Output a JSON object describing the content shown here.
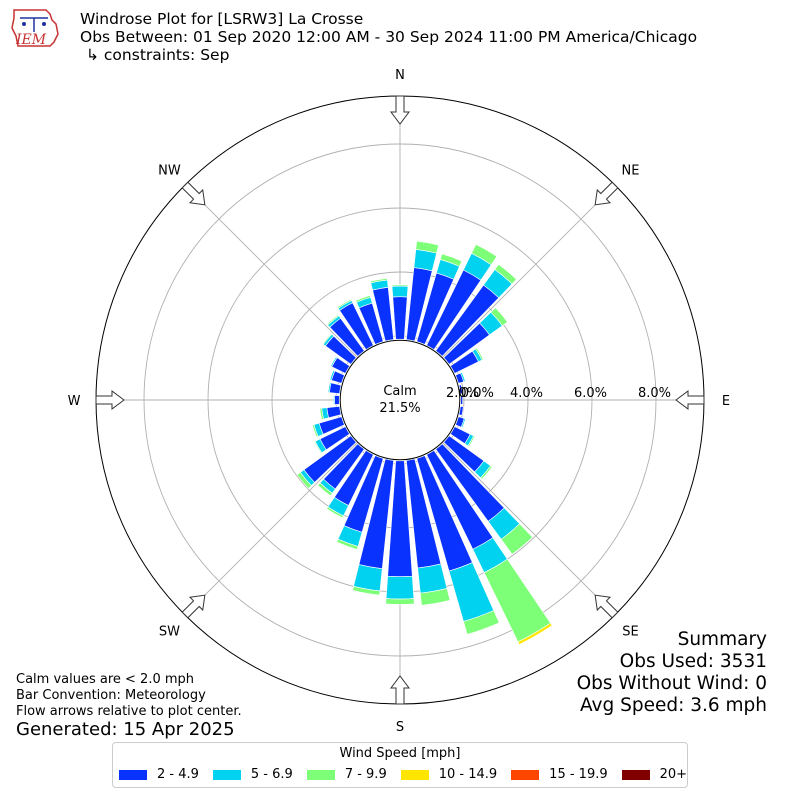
{
  "header": {
    "logo_text": "IEM",
    "title": "Windrose Plot for [LSRW3] La Crosse",
    "obs_between": "Obs Between: 01 Sep 2020 12:00 AM - 30 Sep 2024 11:00 PM America/Chicago",
    "constraints": "↳ constraints: Sep"
  },
  "footer": {
    "calm_note": "Calm values are < 2.0 mph",
    "bar_convention": "Bar Convention: Meteorology",
    "flow_note": "Flow arrows relative to plot center.",
    "generated": "Generated: 15 Apr 2025"
  },
  "summary": {
    "title": "Summary",
    "obs_used": "Obs Used: 3531",
    "obs_without_wind": "Obs Without Wind: 0",
    "avg_speed": "Avg Speed: 3.6 mph"
  },
  "legend": {
    "title": "Wind Speed [mph]",
    "items": [
      {
        "label": "2 - 4.9",
        "color": "#0a32ff"
      },
      {
        "label": "5 - 6.9",
        "color": "#00d2f0"
      },
      {
        "label": "7 - 9.9",
        "color": "#7dff78"
      },
      {
        "label": "10 - 14.9",
        "color": "#ffe600"
      },
      {
        "label": "15 - 19.9",
        "color": "#ff4600"
      },
      {
        "label": "20+",
        "color": "#800000"
      }
    ]
  },
  "chart_data": {
    "type": "windrose",
    "calm_label": "Calm",
    "calm_value": "21.5%",
    "radial_ticks": [
      "0.0%",
      "2.0%",
      "4.0%",
      "6.0%",
      "8.0%"
    ],
    "radial_tick_values": [
      0,
      2,
      4,
      6,
      8
    ],
    "rmax": 9.5,
    "calm_radius_value": 1.9,
    "directions": [
      "N",
      "NE",
      "E",
      "SE",
      "S",
      "SW",
      "W",
      "NW"
    ],
    "direction_angles": [
      0,
      45,
      90,
      135,
      180,
      225,
      270,
      315
    ],
    "speed_bins": [
      "2 - 4.9",
      "5 - 6.9",
      "7 - 9.9",
      "10 - 14.9",
      "15 - 19.9",
      "20+"
    ],
    "bar_colors": [
      "#0a32ff",
      "#00d2f0",
      "#7dff78",
      "#ffe600",
      "#ff4600",
      "#800000"
    ],
    "sector_width_deg": 10,
    "sectors": [
      {
        "dir": 0,
        "values": [
          1.33,
          0.33,
          0.04,
          0,
          0,
          0
        ]
      },
      {
        "dir": 10,
        "values": [
          2.26,
          0.57,
          0.26,
          0,
          0,
          0
        ]
      },
      {
        "dir": 20,
        "values": [
          2.23,
          0.44,
          0.18,
          0,
          0,
          0
        ]
      },
      {
        "dir": 30,
        "values": [
          2.62,
          0.58,
          0.31,
          0,
          0,
          0
        ]
      },
      {
        "dir": 40,
        "values": [
          2.54,
          0.6,
          0.2,
          0,
          0,
          0
        ]
      },
      {
        "dir": 50,
        "values": [
          1.56,
          0.49,
          0.2,
          0,
          0,
          0
        ]
      },
      {
        "dir": 60,
        "values": [
          0.83,
          0.12,
          0.05,
          0,
          0,
          0
        ]
      },
      {
        "dir": 70,
        "values": [
          0.17,
          0.05,
          0,
          0,
          0,
          0
        ]
      },
      {
        "dir": 80,
        "values": [
          0.07,
          0,
          0,
          0,
          0,
          0
        ]
      },
      {
        "dir": 90,
        "values": [
          0.06,
          0,
          0,
          0,
          0,
          0
        ]
      },
      {
        "dir": 100,
        "values": [
          0.09,
          0,
          0,
          0,
          0,
          0
        ]
      },
      {
        "dir": 110,
        "values": [
          0.19,
          0.04,
          0,
          0,
          0,
          0
        ]
      },
      {
        "dir": 120,
        "values": [
          0.54,
          0.12,
          0.04,
          0,
          0,
          0
        ]
      },
      {
        "dir": 130,
        "values": [
          1.34,
          0.26,
          0.06,
          0,
          0,
          0
        ]
      },
      {
        "dir": 140,
        "values": [
          2.79,
          0.69,
          0.58,
          0,
          0,
          0
        ]
      },
      {
        "dir": 150,
        "values": [
          3.29,
          0.81,
          2.41,
          0.09,
          0,
          0
        ]
      },
      {
        "dir": 160,
        "values": [
          3.66,
          1.64,
          0.42,
          0,
          0,
          0
        ]
      },
      {
        "dir": 170,
        "values": [
          3.38,
          0.79,
          0.38,
          0,
          0,
          0
        ]
      },
      {
        "dir": 180,
        "values": [
          3.62,
          0.7,
          0.17,
          0,
          0,
          0
        ]
      },
      {
        "dir": 190,
        "values": [
          3.4,
          0.7,
          0.13,
          0,
          0,
          0
        ]
      },
      {
        "dir": 200,
        "values": [
          2.4,
          0.46,
          0.1,
          0,
          0,
          0
        ]
      },
      {
        "dir": 210,
        "values": [
          1.77,
          0.36,
          0.07,
          0,
          0,
          0
        ]
      },
      {
        "dir": 220,
        "values": [
          1.54,
          0.16,
          0.1,
          0,
          0,
          0
        ]
      },
      {
        "dir": 230,
        "values": [
          1.81,
          0.14,
          0.13,
          0,
          0,
          0
        ]
      },
      {
        "dir": 240,
        "values": [
          0.88,
          0.17,
          0.03,
          0,
          0,
          0
        ]
      },
      {
        "dir": 250,
        "values": [
          0.73,
          0.17,
          0.05,
          0,
          0,
          0
        ]
      },
      {
        "dir": 260,
        "values": [
          0.4,
          0.16,
          0.06,
          0,
          0,
          0
        ]
      },
      {
        "dir": 270,
        "values": [
          0.15,
          0.03,
          0,
          0,
          0,
          0
        ]
      },
      {
        "dir": 280,
        "values": [
          0.32,
          0.04,
          0,
          0,
          0,
          0
        ]
      },
      {
        "dir": 290,
        "values": [
          0.33,
          0.05,
          0,
          0,
          0,
          0
        ]
      },
      {
        "dir": 300,
        "values": [
          0.47,
          0.04,
          0,
          0,
          0,
          0
        ]
      },
      {
        "dir": 310,
        "values": [
          0.98,
          0.08,
          0.03,
          0,
          0,
          0
        ]
      },
      {
        "dir": 320,
        "values": [
          1.26,
          0.09,
          0.04,
          0,
          0,
          0
        ]
      },
      {
        "dir": 330,
        "values": [
          1.48,
          0.08,
          0.04,
          0,
          0,
          0
        ]
      },
      {
        "dir": 340,
        "values": [
          1.25,
          0.19,
          0.06,
          0,
          0,
          0
        ]
      },
      {
        "dir": 350,
        "values": [
          1.64,
          0.23,
          0.05,
          0,
          0,
          0
        ]
      }
    ]
  }
}
